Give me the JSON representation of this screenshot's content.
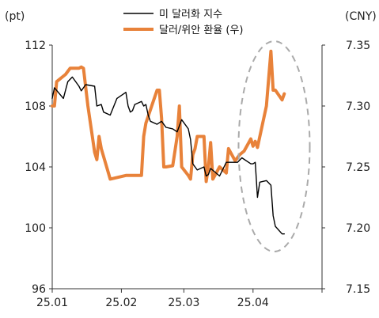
{
  "chart_data": {
    "type": "line",
    "left_unit": "(pt)",
    "right_unit": "(CNY)",
    "x_ticks": [
      "25.01",
      "25.02",
      "25.03",
      "25.04"
    ],
    "y_left": {
      "ticks": [
        "96",
        "100",
        "104",
        "108",
        "112"
      ],
      "min": 96,
      "max": 112
    },
    "y_right": {
      "ticks": [
        "7.15",
        "7.20",
        "7.25",
        "7.30",
        "7.35"
      ],
      "min": 7.15,
      "max": 7.35
    },
    "series": [
      {
        "name": "미 달러화 지수",
        "axis": "left",
        "color": "#000000",
        "x": [
          "2025-01-01",
          "2025-01-02",
          "2025-01-06",
          "2025-01-08",
          "2025-01-10",
          "2025-01-13",
          "2025-01-14",
          "2025-01-16",
          "2025-01-20",
          "2025-01-21",
          "2025-01-23",
          "2025-01-24",
          "2025-01-27",
          "2025-01-30",
          "2025-02-03",
          "2025-02-04",
          "2025-02-05",
          "2025-02-06",
          "2025-02-07",
          "2025-02-10",
          "2025-02-11",
          "2025-02-12",
          "2025-02-13",
          "2025-02-14",
          "2025-02-17",
          "2025-02-19",
          "2025-02-21",
          "2025-02-24",
          "2025-02-26",
          "2025-02-28",
          "2025-03-03",
          "2025-03-04",
          "2025-03-05",
          "2025-03-07",
          "2025-03-10",
          "2025-03-11",
          "2025-03-12",
          "2025-03-13",
          "2025-03-17",
          "2025-03-20",
          "2025-03-25",
          "2025-03-27",
          "2025-03-31",
          "2025-04-01",
          "2025-04-02",
          "2025-04-03",
          "2025-04-04",
          "2025-04-07",
          "2025-04-09",
          "2025-04-10",
          "2025-04-11",
          "2025-04-14",
          "2025-04-15"
        ],
        "y": [
          108.5,
          109.2,
          108.5,
          109.6,
          109.9,
          109.3,
          109.0,
          109.4,
          109.3,
          108.0,
          108.1,
          107.6,
          107.4,
          108.5,
          108.9,
          108.0,
          107.6,
          107.7,
          108.1,
          108.3,
          108.0,
          108.1,
          107.4,
          107.0,
          106.8,
          107.0,
          106.6,
          106.5,
          106.3,
          107.1,
          106.5,
          105.8,
          104.2,
          103.8,
          104.0,
          103.4,
          103.5,
          103.9,
          103.4,
          104.3,
          104.3,
          104.6,
          104.2,
          104.2,
          104.3,
          102.0,
          103.0,
          103.1,
          102.8,
          100.8,
          100.1,
          99.6,
          99.6
        ]
      },
      {
        "name": "달러/위안 환율 (우)",
        "axis": "right",
        "color": "#E8823A",
        "x": [
          "2025-01-01",
          "2025-01-02",
          "2025-01-03",
          "2025-01-07",
          "2025-01-09",
          "2025-01-13",
          "2025-01-14",
          "2025-01-15",
          "2025-01-17",
          "2025-01-20",
          "2025-01-21",
          "2025-01-22",
          "2025-01-23",
          "2025-01-27",
          "2025-02-03",
          "2025-02-04",
          "2025-02-05",
          "2025-02-07",
          "2025-02-10",
          "2025-02-11",
          "2025-02-12",
          "2025-02-17",
          "2025-02-18",
          "2025-02-19",
          "2025-02-20",
          "2025-02-21",
          "2025-02-24",
          "2025-02-25",
          "2025-02-26",
          "2025-02-27",
          "2025-02-28",
          "2025-03-03",
          "2025-03-04",
          "2025-03-05",
          "2025-03-06",
          "2025-03-07",
          "2025-03-10",
          "2025-03-11",
          "2025-03-12",
          "2025-03-13",
          "2025-03-14",
          "2025-03-17",
          "2025-03-20",
          "2025-03-21",
          "2025-03-24",
          "2025-03-26",
          "2025-03-28",
          "2025-03-31",
          "2025-04-01",
          "2025-04-02",
          "2025-04-03",
          "2025-04-07",
          "2025-04-09",
          "2025-04-10",
          "2025-04-11",
          "2025-04-14",
          "2025-04-15"
        ],
        "y": [
          7.3,
          7.3,
          7.32,
          7.326,
          7.331,
          7.331,
          7.332,
          7.331,
          7.3,
          7.262,
          7.256,
          7.275,
          7.265,
          7.24,
          7.243,
          7.243,
          7.243,
          7.243,
          7.243,
          7.275,
          7.286,
          7.313,
          7.313,
          7.29,
          7.25,
          7.25,
          7.251,
          7.263,
          7.275,
          7.3,
          7.25,
          7.243,
          7.24,
          7.26,
          7.265,
          7.275,
          7.275,
          7.238,
          7.25,
          7.27,
          7.24,
          7.25,
          7.245,
          7.265,
          7.255,
          7.26,
          7.263,
          7.273,
          7.267,
          7.271,
          7.266,
          7.3,
          7.345,
          7.313,
          7.313,
          7.305,
          7.31
        ]
      }
    ],
    "annotations": [
      {
        "type": "ellipse",
        "style": "dashed",
        "color": "#aaaaaa",
        "covers": [
          "2025-04-01",
          "2025-04-15"
        ]
      }
    ]
  }
}
